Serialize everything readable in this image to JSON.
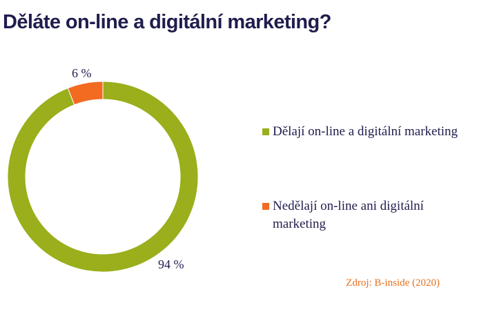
{
  "title": "Děláte on-line a digitální marketing?",
  "source": "Zdroj: B-inside (2020)",
  "chart_data": {
    "type": "pie",
    "donut": true,
    "title": "Děláte on-line a digitální marketing?",
    "categories": [
      "Dělají on-line a digitální marketing",
      "Nedělají on-line ani digitální marketing"
    ],
    "values": [
      94,
      6
    ],
    "labels": [
      "94 %",
      "6 %"
    ],
    "colors": [
      "#9aaf1b",
      "#f26b21"
    ],
    "legend_position": "right"
  }
}
